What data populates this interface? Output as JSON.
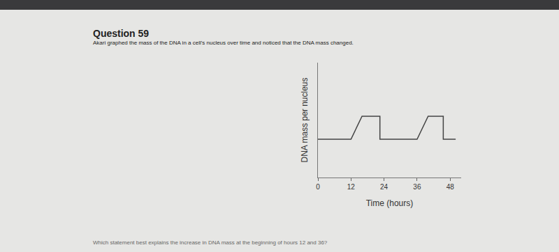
{
  "chart_data": {
    "type": "line",
    "title": "Question 59",
    "subtitle": "Akari graphed the mass of the DNA in a cell's nucleus over time and noticed that the DNA mass changed.",
    "question": "Which statement best explains the increase in DNA mass at the beginning of hours 12 and 36?",
    "x_label": "Time (hours)",
    "y_label": "DNA mass per nucleus",
    "x": [
      0,
      12,
      16,
      22.5,
      22.5,
      36,
      40,
      45.5,
      45.5,
      50
    ],
    "values": [
      1,
      1,
      1.6,
      1.6,
      1,
      1,
      1.6,
      1.6,
      1,
      1
    ],
    "color": "#444444",
    "xlim": [
      0,
      52
    ],
    "xticks": [
      0,
      12,
      24,
      36,
      48
    ],
    "ylim": [
      0,
      3
    ],
    "yticks": [],
    "grid": false,
    "tick_labels": "x"
  }
}
